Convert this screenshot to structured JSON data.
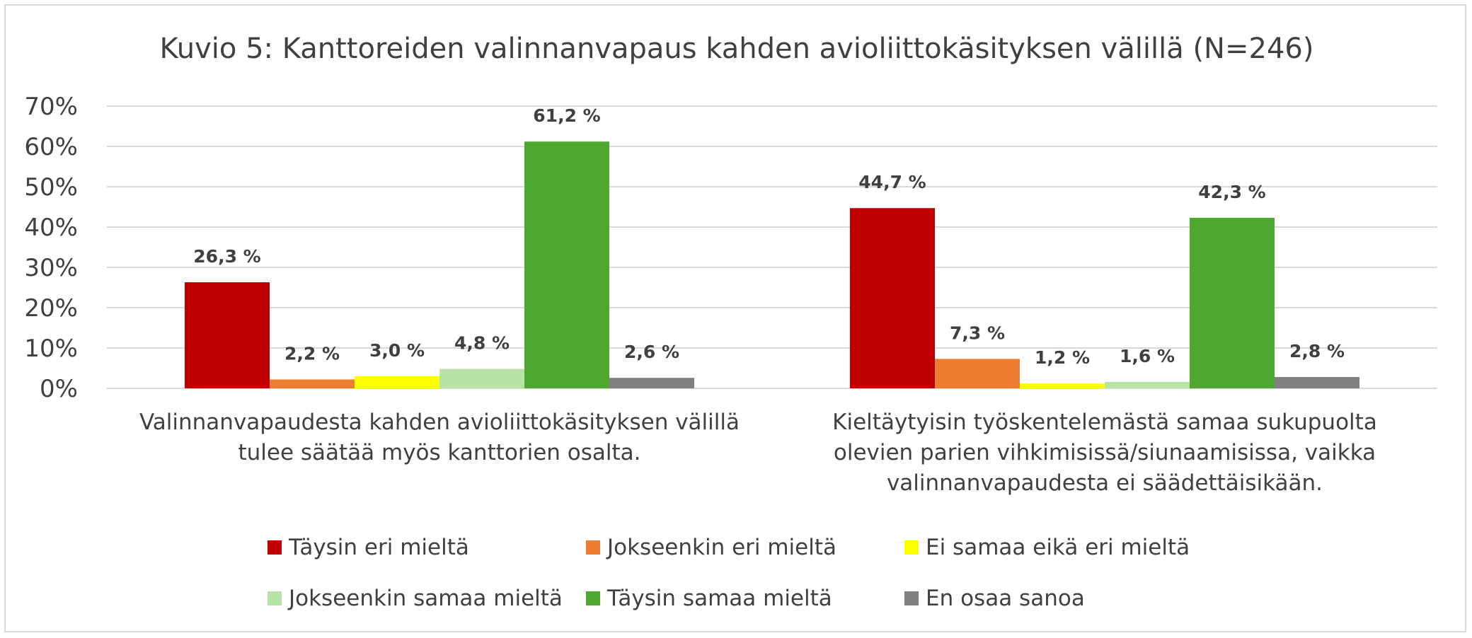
{
  "chart_data": {
    "type": "bar",
    "title": "Kuvio 5: Kanttoreiden valinnanvapaus kahden avioliittokäsityksen välillä (N=246)",
    "categories": [
      [
        "Valinnanvapaudesta kahden avioliittokäsityksen välillä",
        "tulee säätää myös kanttorien osalta."
      ],
      [
        "Kieltäytyisin työskentelemästä samaa sukupuolta",
        "olevien parien vihkimisissä/siunaamisissa, vaikka",
        "valinnanvapaudesta ei säädettäisikään."
      ]
    ],
    "series": [
      {
        "name": "Täysin eri mieltä",
        "color": "#c00000",
        "values": [
          26.3,
          44.7
        ],
        "labels": [
          "26,3 %",
          "44,7 %"
        ]
      },
      {
        "name": "Jokseenkin eri mieltä",
        "color": "#ed7d31",
        "values": [
          2.2,
          7.3
        ],
        "labels": [
          "2,2 %",
          "7,3 %"
        ]
      },
      {
        "name": "Ei samaa eikä eri mieltä",
        "color": "#ffff00",
        "values": [
          3.0,
          1.2
        ],
        "labels": [
          "3,0 %",
          "1,2 %"
        ]
      },
      {
        "name": "Jokseenkin samaa mieltä",
        "color": "#b7e4a6",
        "values": [
          4.8,
          1.6
        ],
        "labels": [
          "4,8 %",
          "1,6 %"
        ]
      },
      {
        "name": "Täysin samaa mieltä",
        "color": "#4ea72e",
        "values": [
          61.2,
          42.3
        ],
        "labels": [
          "61,2 %",
          "42,3 %"
        ]
      },
      {
        "name": "En osaa sanoa",
        "color": "#808080",
        "values": [
          2.6,
          2.8
        ],
        "labels": [
          "2,6 %",
          "2,8 %"
        ]
      }
    ],
    "ylim": [
      0,
      70
    ],
    "yticks": [
      "0%",
      "10%",
      "20%",
      "30%",
      "40%",
      "50%",
      "60%",
      "70%"
    ],
    "grid": true,
    "legend_position": "bottom"
  }
}
